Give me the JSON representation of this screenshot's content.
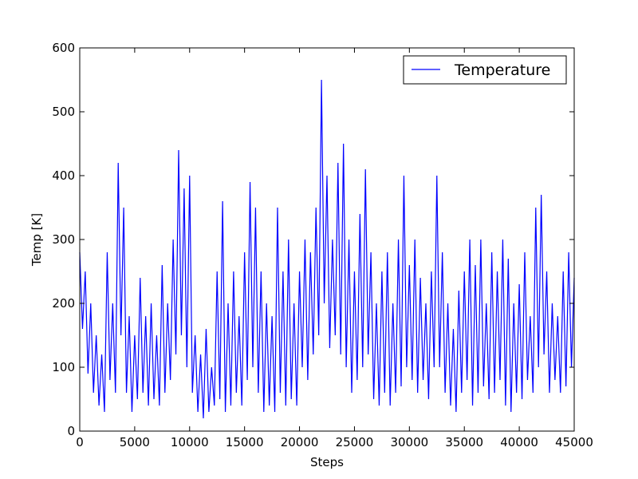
{
  "chart_data": {
    "type": "line",
    "xlabel": "Steps",
    "ylabel": "Temp [K]",
    "x": [
      0,
      250,
      500,
      750,
      1000,
      1250,
      1500,
      1750,
      2000,
      2250,
      2500,
      2750,
      3000,
      3250,
      3500,
      3750,
      4000,
      4250,
      4500,
      4750,
      5000,
      5250,
      5500,
      5750,
      6000,
      6250,
      6500,
      6750,
      7000,
      7250,
      7500,
      7750,
      8000,
      8250,
      8500,
      8750,
      9000,
      9250,
      9500,
      9750,
      10000,
      10250,
      10500,
      10750,
      11000,
      11250,
      11500,
      11750,
      12000,
      12250,
      12500,
      12750,
      13000,
      13250,
      13500,
      13750,
      14000,
      14250,
      14500,
      14750,
      15000,
      15250,
      15500,
      15750,
      16000,
      16250,
      16500,
      16750,
      17000,
      17250,
      17500,
      17750,
      18000,
      18250,
      18500,
      18750,
      19000,
      19250,
      19500,
      19750,
      20000,
      20250,
      20500,
      20750,
      21000,
      21250,
      21500,
      21750,
      22000,
      22250,
      22500,
      22750,
      23000,
      23250,
      23500,
      23750,
      24000,
      24250,
      24500,
      24750,
      25000,
      25250,
      25500,
      25750,
      26000,
      26250,
      26500,
      26750,
      27000,
      27250,
      27500,
      27750,
      28000,
      28250,
      28500,
      28750,
      29000,
      29250,
      29500,
      29750,
      30000,
      30250,
      30500,
      30750,
      31000,
      31250,
      31500,
      31750,
      32000,
      32250,
      32500,
      32750,
      33000,
      33250,
      33500,
      33750,
      34000,
      34250,
      34500,
      34750,
      35000,
      35250,
      35500,
      35750,
      36000,
      36250,
      36500,
      36750,
      37000,
      37250,
      37500,
      37750,
      38000,
      38250,
      38500,
      38750,
      39000,
      39250,
      39500,
      39750,
      40000,
      40250,
      40500,
      40750,
      41000,
      41250,
      41500,
      41750,
      42000,
      42250,
      42500,
      42750,
      43000,
      43250,
      43500,
      43750,
      44000,
      44250,
      44500,
      44750,
      45000
    ],
    "series": [
      {
        "name": "Temperature",
        "color": "#0000ff",
        "values": [
          280,
          160,
          250,
          90,
          200,
          60,
          150,
          40,
          120,
          30,
          280,
          80,
          200,
          60,
          420,
          150,
          350,
          60,
          180,
          30,
          150,
          50,
          240,
          60,
          180,
          40,
          200,
          50,
          150,
          40,
          260,
          60,
          200,
          80,
          300,
          120,
          440,
          150,
          380,
          100,
          400,
          60,
          150,
          30,
          120,
          20,
          160,
          30,
          100,
          40,
          250,
          50,
          360,
          30,
          200,
          40,
          250,
          60,
          180,
          40,
          280,
          80,
          390,
          100,
          350,
          60,
          250,
          30,
          200,
          40,
          180,
          30,
          350,
          60,
          250,
          40,
          300,
          50,
          200,
          40,
          250,
          100,
          300,
          80,
          280,
          120,
          350,
          150,
          550,
          200,
          400,
          130,
          300,
          150,
          420,
          120,
          450,
          100,
          300,
          60,
          250,
          80,
          340,
          100,
          410,
          120,
          280,
          50,
          200,
          40,
          250,
          60,
          280,
          40,
          200,
          60,
          300,
          70,
          400,
          100,
          260,
          80,
          300,
          60,
          240,
          80,
          200,
          50,
          250,
          100,
          400,
          100,
          280,
          60,
          200,
          40,
          160,
          30,
          220,
          60,
          250,
          80,
          300,
          40,
          260,
          60,
          300,
          70,
          200,
          50,
          280,
          60,
          250,
          80,
          300,
          40,
          270,
          30,
          200,
          60,
          230,
          50,
          280,
          80,
          180,
          60,
          350,
          100,
          370,
          120,
          250,
          60,
          200,
          80,
          180,
          60,
          250,
          70,
          280,
          100,
          240
        ]
      }
    ],
    "xlim": [
      0,
      45000
    ],
    "ylim": [
      0,
      600
    ],
    "xticks": [
      0,
      5000,
      10000,
      15000,
      20000,
      25000,
      30000,
      35000,
      40000,
      45000
    ],
    "yticks": [
      0,
      100,
      200,
      300,
      400,
      500,
      600
    ],
    "legend": "upper right"
  }
}
